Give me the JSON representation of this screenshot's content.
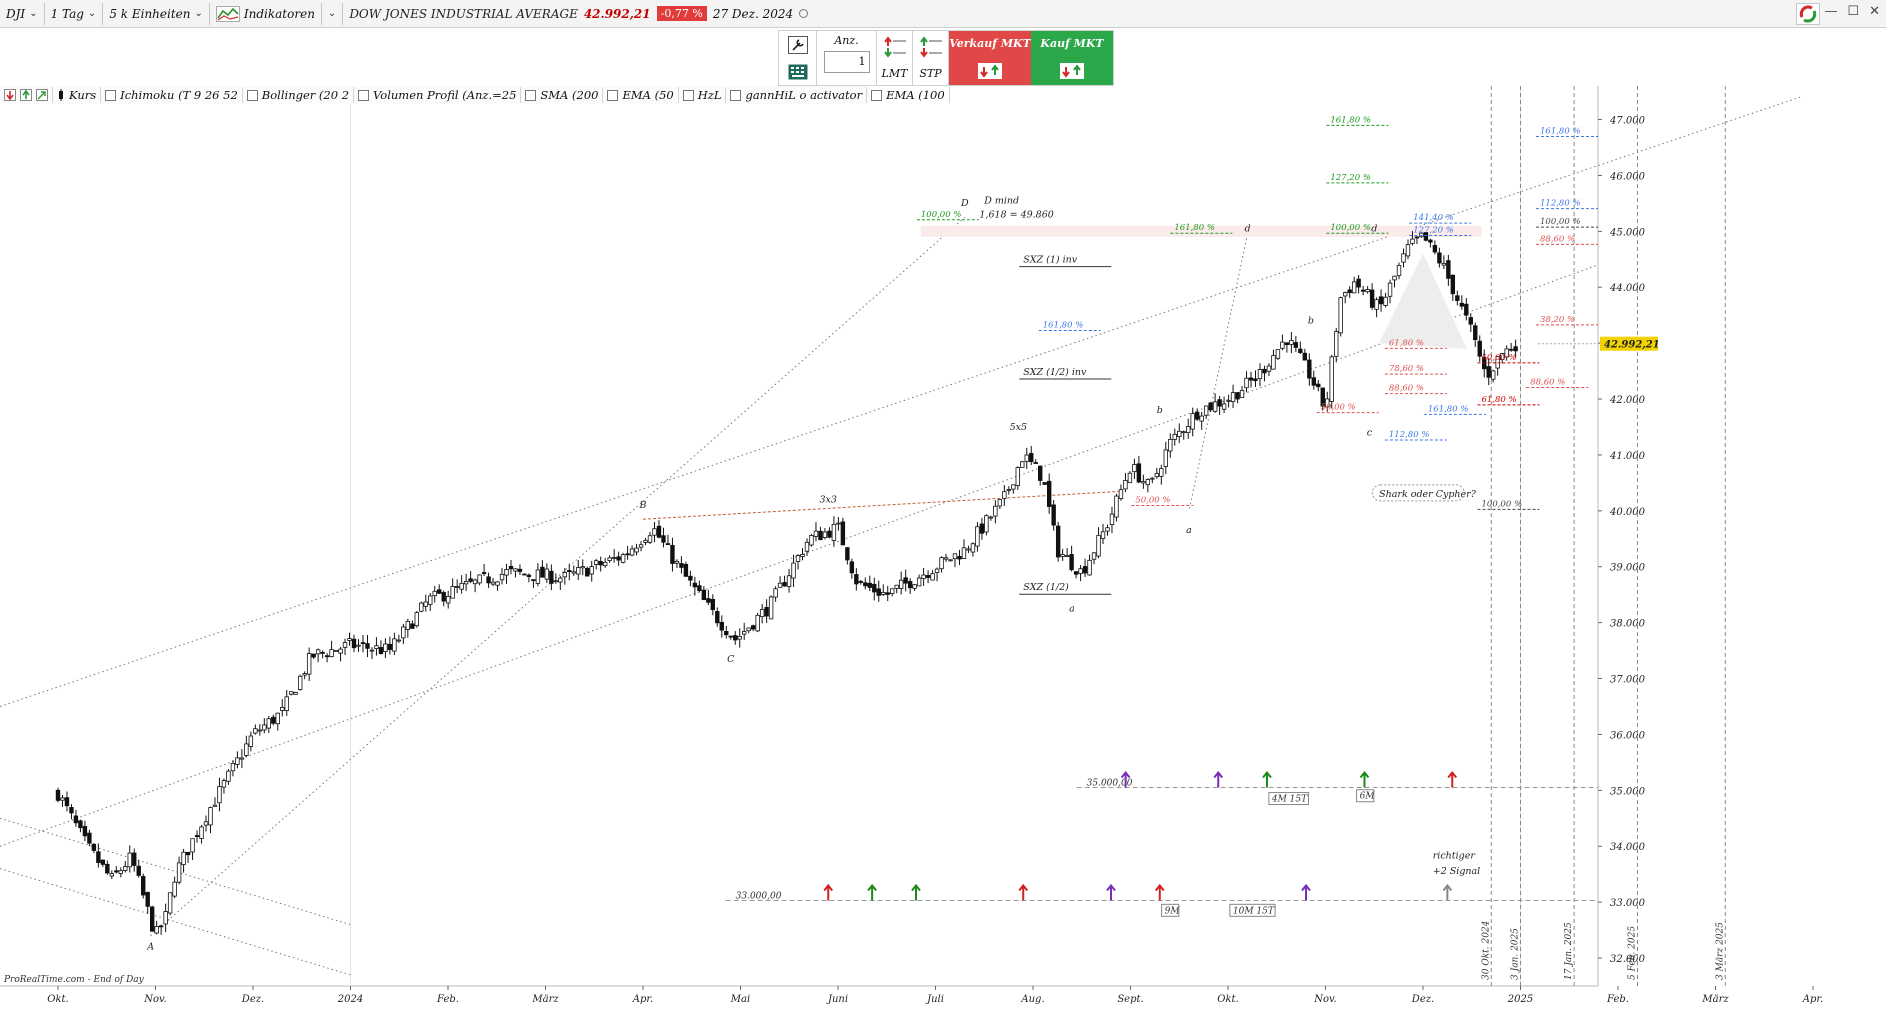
{
  "toolbar": {
    "symbol": "DJI",
    "timeframe": "1 Tag",
    "units": "5 k Einheiten",
    "indicators_label": "Indikatoren",
    "instrument_name": "DOW JONES INDUSTRIAL AVERAGE",
    "last_price": "42.992,21",
    "change_pct": "-0,77 %",
    "date": "27 Dez. 2024"
  },
  "order_panel": {
    "qty_label": "Anz.",
    "qty_value": "1",
    "lmt_label": "LMT",
    "stp_label": "STP",
    "sell_label": "Verkauf MKT",
    "buy_label": "Kauf MKT"
  },
  "indicator_bar": {
    "price_label": "Kurs",
    "items": [
      "Ichimoku (T 9 26 52",
      "Bollinger (20 2",
      "Volumen Profil (Anz.=25",
      "SMA (200",
      "EMA (50",
      "HzL",
      "gannHiL o activator",
      "EMA (100"
    ]
  },
  "watermark": "ProRealTime.com - End of Day",
  "colors": {
    "bull": "#ffffff",
    "bear": "#111111",
    "wick": "#111111",
    "sell": "#e04848",
    "buy": "#2aa84a",
    "price_badge": "#f2d200",
    "green_pct": "#1a9a1a",
    "blue_pct": "#3b78e7",
    "red_pct": "#e05050"
  },
  "chart_data": {
    "type": "candlestick",
    "y_ticks": [
      "47.000",
      "46.000",
      "45.000",
      "44.000",
      "43.000",
      "42.000",
      "41.000",
      "40.000",
      "39.000",
      "38.000",
      "37.000",
      "36.000",
      "35.000",
      "34.000",
      "33.000",
      "32.000"
    ],
    "y_tick_values": [
      47000,
      46000,
      45000,
      44000,
      43000,
      42000,
      41000,
      40000,
      39000,
      38000,
      37000,
      36000,
      35000,
      34000,
      33000,
      32000
    ],
    "x_ticks": [
      {
        "label": "Okt.",
        "t": 0
      },
      {
        "label": "Nov.",
        "t": 1
      },
      {
        "label": "Dez.",
        "t": 2
      },
      {
        "label": "2024",
        "t": 3
      },
      {
        "label": "Feb.",
        "t": 4
      },
      {
        "label": "März",
        "t": 5
      },
      {
        "label": "Apr.",
        "t": 6
      },
      {
        "label": "Mai",
        "t": 7
      },
      {
        "label": "Juni",
        "t": 8
      },
      {
        "label": "Juli",
        "t": 9
      },
      {
        "label": "Aug.",
        "t": 10
      },
      {
        "label": "Sept.",
        "t": 11
      },
      {
        "label": "Okt.",
        "t": 12
      },
      {
        "label": "Nov.",
        "t": 13
      },
      {
        "label": "Dez.",
        "t": 14
      },
      {
        "label": "2025",
        "t": 15
      },
      {
        "label": "Feb.",
        "t": 16
      },
      {
        "label": "März",
        "t": 17
      },
      {
        "label": "Apr.",
        "t": 18
      }
    ],
    "ylim": [
      31500,
      47600
    ],
    "last_price_label": "42.992,21",
    "path_points": [
      {
        "t": 0.0,
        "v": 34950
      },
      {
        "t": 0.3,
        "v": 34000
      },
      {
        "t": 0.55,
        "v": 33400
      },
      {
        "t": 0.75,
        "v": 33800
      },
      {
        "t": 1.0,
        "v": 32400
      },
      {
        "t": 1.1,
        "v": 32700
      },
      {
        "t": 1.2,
        "v": 33500
      },
      {
        "t": 1.5,
        "v": 34500
      },
      {
        "t": 1.8,
        "v": 35400
      },
      {
        "t": 2.0,
        "v": 36000
      },
      {
        "t": 2.3,
        "v": 36400
      },
      {
        "t": 2.6,
        "v": 37400
      },
      {
        "t": 3.0,
        "v": 37600
      },
      {
        "t": 3.4,
        "v": 37500
      },
      {
        "t": 3.8,
        "v": 38400
      },
      {
        "t": 4.1,
        "v": 38600
      },
      {
        "t": 4.6,
        "v": 38900
      },
      {
        "t": 5.2,
        "v": 38800
      },
      {
        "t": 5.8,
        "v": 39200
      },
      {
        "t": 6.1,
        "v": 39700
      },
      {
        "t": 6.4,
        "v": 38900
      },
      {
        "t": 6.7,
        "v": 38200
      },
      {
        "t": 6.95,
        "v": 37700
      },
      {
        "t": 7.3,
        "v": 38300
      },
      {
        "t": 7.7,
        "v": 39500
      },
      {
        "t": 8.0,
        "v": 39700
      },
      {
        "t": 8.2,
        "v": 38700
      },
      {
        "t": 8.5,
        "v": 38500
      },
      {
        "t": 8.9,
        "v": 38900
      },
      {
        "t": 9.3,
        "v": 39300
      },
      {
        "t": 9.7,
        "v": 40200
      },
      {
        "t": 9.9,
        "v": 41000
      },
      {
        "t": 10.1,
        "v": 40600
      },
      {
        "t": 10.25,
        "v": 39300
      },
      {
        "t": 10.5,
        "v": 38900
      },
      {
        "t": 10.75,
        "v": 39700
      },
      {
        "t": 11.0,
        "v": 40800
      },
      {
        "t": 11.2,
        "v": 40400
      },
      {
        "t": 11.4,
        "v": 41200
      },
      {
        "t": 11.7,
        "v": 41800
      },
      {
        "t": 12.0,
        "v": 42000
      },
      {
        "t": 12.3,
        "v": 42400
      },
      {
        "t": 12.6,
        "v": 43100
      },
      {
        "t": 12.85,
        "v": 42400
      },
      {
        "t": 13.0,
        "v": 41800
      },
      {
        "t": 13.15,
        "v": 43800
      },
      {
        "t": 13.3,
        "v": 44100
      },
      {
        "t": 13.55,
        "v": 43600
      },
      {
        "t": 13.85,
        "v": 44700
      },
      {
        "t": 14.0,
        "v": 44900
      },
      {
        "t": 14.2,
        "v": 44400
      },
      {
        "t": 14.5,
        "v": 43200
      },
      {
        "t": 14.65,
        "v": 42400
      },
      {
        "t": 14.8,
        "v": 42800
      },
      {
        "t": 14.95,
        "v": 42990
      }
    ],
    "wave_labels": [
      {
        "text": "A",
        "t": 0.95,
        "v": 32150
      },
      {
        "text": "B",
        "t": 6.0,
        "v": 40050
      },
      {
        "text": "C",
        "t": 6.9,
        "v": 37300
      },
      {
        "text": "D",
        "t": 9.3,
        "v": 45450
      },
      {
        "text": "3x3",
        "t": 7.9,
        "v": 40150
      },
      {
        "text": "5x5",
        "t": 9.85,
        "v": 41450
      },
      {
        "text": "b",
        "t": 11.3,
        "v": 41750
      },
      {
        "text": "a",
        "t": 11.6,
        "v": 39600
      },
      {
        "text": "c",
        "t": 13.45,
        "v": 41350
      },
      {
        "text": "d",
        "t": 13.5,
        "v": 45000
      },
      {
        "text": "b",
        "t": 12.85,
        "v": 43350
      },
      {
        "text": "d",
        "t": 12.2,
        "v": 45000
      },
      {
        "text": "a",
        "t": 10.4,
        "v": 38200
      }
    ],
    "annotations": [
      {
        "text": "D mind",
        "t": 9.5,
        "v": 45500
      },
      {
        "text": "1,618 = 49.860",
        "t": 9.45,
        "v": 45250
      },
      {
        "text": "SXZ (1) inv",
        "t": 9.9,
        "v": 44440
      },
      {
        "text": "SXZ (1/2) inv",
        "t": 9.9,
        "v": 42430
      },
      {
        "text": "SXZ (1/2)",
        "t": 9.9,
        "v": 38580
      },
      {
        "text": "Shark oder Cypher?",
        "t": 13.55,
        "v": 40250
      },
      {
        "text": "richtiger",
        "t": 14.1,
        "v": 33780
      },
      {
        "text": "+2 Signal",
        "t": 14.1,
        "v": 33500
      }
    ],
    "fib_levels": [
      {
        "text": "100,00 %",
        "t": 8.85,
        "v": 45260,
        "color": "#1a9a1a"
      },
      {
        "text": "161,80 %",
        "t": 11.45,
        "v": 45020,
        "color": "#1a9a1a"
      },
      {
        "text": "161,80 %",
        "t": 13.05,
        "v": 46950,
        "color": "#1a9a1a"
      },
      {
        "text": "127,20 %",
        "t": 13.05,
        "v": 45920,
        "color": "#1a9a1a"
      },
      {
        "text": "100,00 %",
        "t": 13.05,
        "v": 45020,
        "color": "#1a9a1a"
      },
      {
        "text": "161,80 %",
        "t": 10.1,
        "v": 43280,
        "color": "#3b78e7"
      },
      {
        "text": "141,40 %",
        "t": 13.9,
        "v": 45200,
        "color": "#3b78e7"
      },
      {
        "text": "127,20 %",
        "t": 13.9,
        "v": 44980,
        "color": "#3b78e7"
      },
      {
        "text": "161,80 %",
        "t": 15.2,
        "v": 46750,
        "color": "#3b78e7"
      },
      {
        "text": "112,80 %",
        "t": 15.2,
        "v": 45460,
        "color": "#3b78e7"
      },
      {
        "text": "100,00 %",
        "t": 15.2,
        "v": 45130,
        "color": "#444444"
      },
      {
        "text": "88,60 %",
        "t": 15.2,
        "v": 44820,
        "color": "#e05050"
      },
      {
        "text": "38,20 %",
        "t": 15.2,
        "v": 43380,
        "color": "#e05050"
      },
      {
        "text": "88,60 %",
        "t": 15.1,
        "v": 42260,
        "color": "#e05050"
      },
      {
        "text": "50,00 %",
        "t": 14.6,
        "v": 42700,
        "color": "#cc0000"
      },
      {
        "text": "61,80 %",
        "t": 14.6,
        "v": 41950,
        "color": "#cc0000"
      },
      {
        "text": "61,80 %",
        "t": 13.65,
        "v": 42960,
        "color": "#e05050"
      },
      {
        "text": "78,60 %",
        "t": 13.65,
        "v": 42500,
        "color": "#e05050"
      },
      {
        "text": "88,60 %",
        "t": 13.65,
        "v": 42150,
        "color": "#e05050"
      },
      {
        "text": "50,00 %",
        "t": 12.95,
        "v": 41810,
        "color": "#e05050"
      },
      {
        "text": "50,00 %",
        "t": 11.05,
        "v": 40150,
        "color": "#e05050"
      },
      {
        "text": "161,80 %",
        "t": 14.05,
        "v": 41780,
        "color": "#3b78e7"
      },
      {
        "text": "112,80 %",
        "t": 13.65,
        "v": 41320,
        "color": "#3b78e7"
      },
      {
        "text": "100,00 %",
        "t": 14.6,
        "v": 40080,
        "color": "#444444"
      }
    ],
    "signal_levels": [
      {
        "text": "35.000,00",
        "t": 10.55,
        "v": 35050
      },
      {
        "text": "33.000,00",
        "t": 6.95,
        "v": 33030
      }
    ],
    "signal_tags": [
      {
        "text": "4M 15T",
        "t": 12.45,
        "v": 34800
      },
      {
        "text": "6M",
        "t": 13.35,
        "v": 34850
      },
      {
        "text": "9M",
        "t": 11.35,
        "v": 32800
      },
      {
        "text": "10M 15T",
        "t": 12.05,
        "v": 32800
      }
    ],
    "vertical_dates": [
      {
        "text": "30 Okt. 2024",
        "t": 14.7
      },
      {
        "text": "3 Jan. 2025",
        "t": 15.0
      },
      {
        "text": "17 Jan. 2025",
        "t": 15.55
      },
      {
        "text": "5 Feb. 2025",
        "t": 16.2
      },
      {
        "text": "3 März 2025",
        "t": 17.1
      }
    ]
  }
}
